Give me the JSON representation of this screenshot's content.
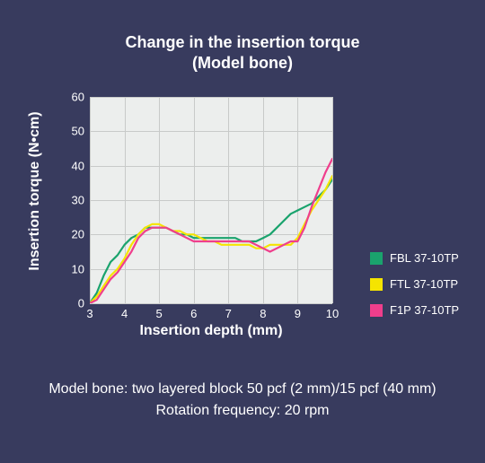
{
  "title_line1": "Change in the insertion torque",
  "title_line2": "(Model bone)",
  "chart": {
    "type": "line",
    "background_color": "#eceeed",
    "grid_color": "#c8cac9",
    "page_background": "#383b5e",
    "text_color": "#ffffff",
    "line_width": 2.2,
    "title_fontsize": 18,
    "label_fontsize": 16,
    "tick_fontsize": 13,
    "xlabel": "Insertion depth (mm)",
    "ylabel": "Insertion torque (N•cm)",
    "xlim": [
      3,
      10
    ],
    "ylim": [
      0,
      60
    ],
    "xticks": [
      3,
      4,
      5,
      6,
      7,
      8,
      9,
      10
    ],
    "yticks": [
      0,
      10,
      20,
      30,
      40,
      50,
      60
    ],
    "series": [
      {
        "name": "FBL 37-10TP",
        "color": "#1aa36d",
        "points": [
          [
            3.0,
            0
          ],
          [
            3.2,
            3
          ],
          [
            3.4,
            8
          ],
          [
            3.6,
            12
          ],
          [
            3.8,
            14
          ],
          [
            4.0,
            17
          ],
          [
            4.2,
            19
          ],
          [
            4.4,
            20
          ],
          [
            4.6,
            22
          ],
          [
            4.8,
            22
          ],
          [
            5.0,
            22
          ],
          [
            5.2,
            22
          ],
          [
            5.4,
            21
          ],
          [
            5.6,
            20
          ],
          [
            5.8,
            20
          ],
          [
            6.0,
            19
          ],
          [
            6.2,
            19
          ],
          [
            6.4,
            19
          ],
          [
            6.6,
            19
          ],
          [
            6.8,
            19
          ],
          [
            7.0,
            19
          ],
          [
            7.2,
            19
          ],
          [
            7.4,
            18
          ],
          [
            7.6,
            18
          ],
          [
            7.8,
            18
          ],
          [
            8.0,
            19
          ],
          [
            8.2,
            20
          ],
          [
            8.4,
            22
          ],
          [
            8.6,
            24
          ],
          [
            8.8,
            26
          ],
          [
            9.0,
            27
          ],
          [
            9.2,
            28
          ],
          [
            9.4,
            29
          ],
          [
            9.6,
            31
          ],
          [
            9.8,
            33
          ],
          [
            10.0,
            36
          ]
        ]
      },
      {
        "name": "FTL 37-10TP",
        "color": "#f5e400",
        "points": [
          [
            3.0,
            0
          ],
          [
            3.2,
            2
          ],
          [
            3.4,
            5
          ],
          [
            3.6,
            8
          ],
          [
            3.8,
            10
          ],
          [
            4.0,
            13
          ],
          [
            4.2,
            17
          ],
          [
            4.4,
            20
          ],
          [
            4.6,
            22
          ],
          [
            4.8,
            23
          ],
          [
            5.0,
            23
          ],
          [
            5.2,
            22
          ],
          [
            5.4,
            21
          ],
          [
            5.6,
            21
          ],
          [
            5.8,
            20
          ],
          [
            6.0,
            20
          ],
          [
            6.2,
            19
          ],
          [
            6.4,
            18
          ],
          [
            6.6,
            18
          ],
          [
            6.8,
            17
          ],
          [
            7.0,
            17
          ],
          [
            7.2,
            17
          ],
          [
            7.4,
            17
          ],
          [
            7.6,
            17
          ],
          [
            7.8,
            16
          ],
          [
            8.0,
            16
          ],
          [
            8.2,
            17
          ],
          [
            8.4,
            17
          ],
          [
            8.6,
            17
          ],
          [
            8.8,
            17
          ],
          [
            9.0,
            19
          ],
          [
            9.2,
            23
          ],
          [
            9.4,
            27
          ],
          [
            9.6,
            30
          ],
          [
            9.8,
            33
          ],
          [
            10.0,
            37
          ]
        ]
      },
      {
        "name": "F1P 37-10TP",
        "color": "#ef3e8c",
        "points": [
          [
            3.0,
            0
          ],
          [
            3.2,
            1
          ],
          [
            3.4,
            4
          ],
          [
            3.6,
            7
          ],
          [
            3.8,
            9
          ],
          [
            4.0,
            12
          ],
          [
            4.2,
            15
          ],
          [
            4.4,
            19
          ],
          [
            4.6,
            21
          ],
          [
            4.8,
            22
          ],
          [
            5.0,
            22
          ],
          [
            5.2,
            22
          ],
          [
            5.4,
            21
          ],
          [
            5.6,
            20
          ],
          [
            5.8,
            19
          ],
          [
            6.0,
            18
          ],
          [
            6.2,
            18
          ],
          [
            6.4,
            18
          ],
          [
            6.6,
            18
          ],
          [
            6.8,
            18
          ],
          [
            7.0,
            18
          ],
          [
            7.2,
            18
          ],
          [
            7.4,
            18
          ],
          [
            7.6,
            18
          ],
          [
            7.8,
            17
          ],
          [
            8.0,
            16
          ],
          [
            8.2,
            15
          ],
          [
            8.4,
            16
          ],
          [
            8.6,
            17
          ],
          [
            8.8,
            18
          ],
          [
            9.0,
            18
          ],
          [
            9.2,
            22
          ],
          [
            9.4,
            28
          ],
          [
            9.6,
            33
          ],
          [
            9.8,
            38
          ],
          [
            10.0,
            42
          ]
        ]
      }
    ]
  },
  "caption_line1": "Model bone: two layered block 50 pcf (2 mm)/15 pcf (40 mm)",
  "caption_line2": "Rotation frequency: 20 rpm"
}
